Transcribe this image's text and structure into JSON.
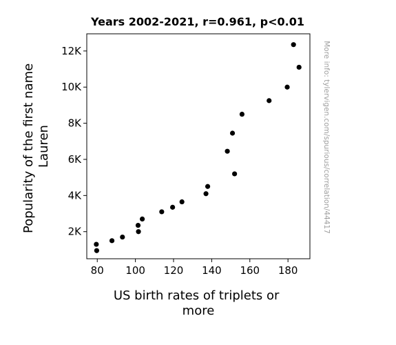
{
  "chart_data": {
    "type": "scatter",
    "title": "Years 2002-2021, r=0.961, p<0.01",
    "xlabel": [
      "US birth rates of triplets or",
      "more"
    ],
    "ylabel": [
      "Popularity of the first name",
      "Lauren"
    ],
    "xlim": [
      74.5,
      191.5
    ],
    "ylim": [
      500,
      12950
    ],
    "xticks": [
      {
        "value": 80,
        "label": "80"
      },
      {
        "value": 100,
        "label": "100"
      },
      {
        "value": 120,
        "label": "120"
      },
      {
        "value": 140,
        "label": "140"
      },
      {
        "value": 160,
        "label": "160"
      },
      {
        "value": 180,
        "label": "180"
      }
    ],
    "yticks": [
      {
        "value": 2000,
        "label": "2K"
      },
      {
        "value": 4000,
        "label": "4K"
      },
      {
        "value": 6000,
        "label": "6K"
      },
      {
        "value": 8000,
        "label": "8K"
      },
      {
        "value": 10000,
        "label": "10K"
      },
      {
        "value": 12000,
        "label": "12K"
      }
    ],
    "grid": false,
    "marker_color": "#000000",
    "points": [
      {
        "x": 182.9,
        "y": 12350
      },
      {
        "x": 185.8,
        "y": 11100
      },
      {
        "x": 179.6,
        "y": 10000
      },
      {
        "x": 170.1,
        "y": 9250
      },
      {
        "x": 155.9,
        "y": 8500
      },
      {
        "x": 150.9,
        "y": 7450
      },
      {
        "x": 148.2,
        "y": 6450
      },
      {
        "x": 152.0,
        "y": 5200
      },
      {
        "x": 137.9,
        "y": 4500
      },
      {
        "x": 137.0,
        "y": 4100
      },
      {
        "x": 124.4,
        "y": 3650
      },
      {
        "x": 119.5,
        "y": 3350
      },
      {
        "x": 113.8,
        "y": 3100
      },
      {
        "x": 103.6,
        "y": 2700
      },
      {
        "x": 101.4,
        "y": 2350
      },
      {
        "x": 101.6,
        "y": 2000
      },
      {
        "x": 93.2,
        "y": 1700
      },
      {
        "x": 87.7,
        "y": 1500
      },
      {
        "x": 79.5,
        "y": 1300
      },
      {
        "x": 79.7,
        "y": 950
      }
    ]
  },
  "watermark": "More info: tylervigen.com/spurious/correlation/44417"
}
